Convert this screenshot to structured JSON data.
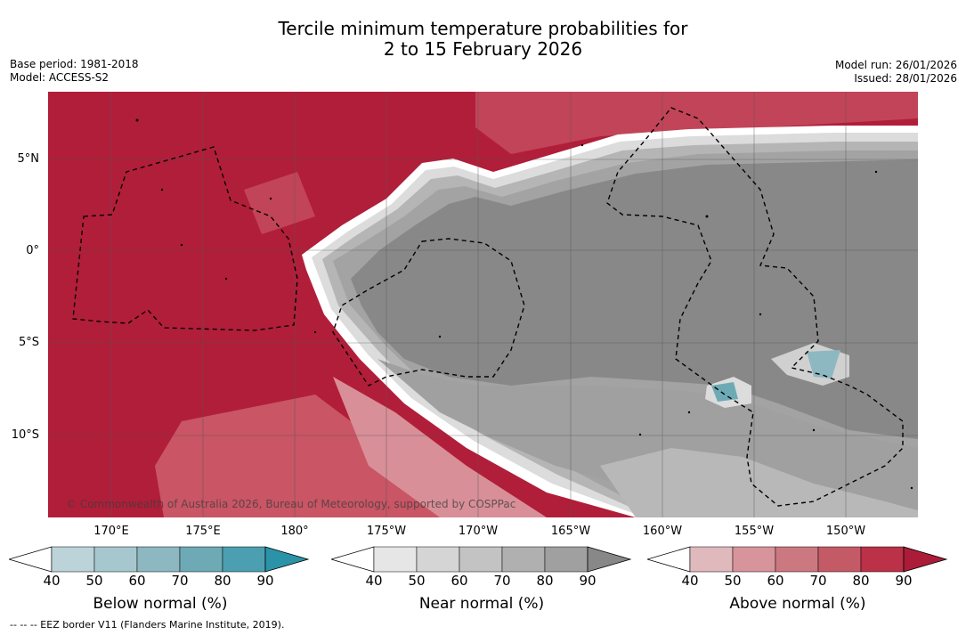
{
  "title_line1": "Tercile minimum temperature probabilities for",
  "title_line2": "2 to 15 February 2026",
  "base_period": "Base period: 1981-2018",
  "model": "Model: ACCESS-S2",
  "model_run": "Model run: 26/01/2026",
  "issued": "Issued: 28/01/2026",
  "lat_labels": [
    "5°N",
    "0°",
    "5°S",
    "10°S"
  ],
  "lon_labels": [
    "170°E",
    "175°E",
    "180°",
    "175°W",
    "170°W",
    "165°W",
    "160°W",
    "155°W",
    "150°W"
  ],
  "copyright": "© Commonwealth of Australia 2026, Bureau of Meteorology, supported by COSPPac",
  "colorbars": [
    {
      "label": "Below normal (%)",
      "ticks": [
        "40",
        "50",
        "60",
        "70",
        "80",
        "90"
      ],
      "colors": [
        "#ffffff",
        "#bcd3da",
        "#a6c7cd",
        "#8db8c2",
        "#6eaab5",
        "#4c9fb0",
        "#2a93a8"
      ]
    },
    {
      "label": "Near normal (%)",
      "ticks": [
        "40",
        "50",
        "60",
        "70",
        "80",
        "90"
      ],
      "colors": [
        "#ffffff",
        "#e6e6e6",
        "#d5d5d5",
        "#c3c3c3",
        "#b0b0b0",
        "#a0a0a0",
        "#888888"
      ]
    },
    {
      "label": "Above normal (%)",
      "ticks": [
        "40",
        "50",
        "60",
        "70",
        "80",
        "90"
      ],
      "colors": [
        "#ffffff",
        "#e0b9bd",
        "#d8949b",
        "#cc7880",
        "#c55a67",
        "#bb3148",
        "#ac1c38"
      ]
    }
  ],
  "footnote": "--  --  -- EEZ border V11 (Flanders Marine Institute, 2019)."
}
